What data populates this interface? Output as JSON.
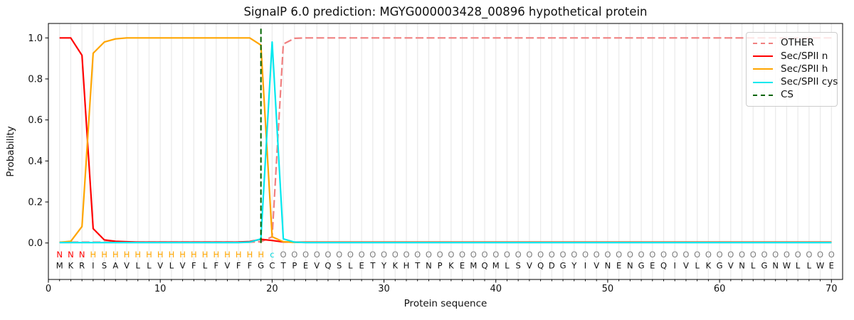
{
  "title": "SignalP 6.0 prediction: MGYG000003428_00896 hypothetical protein",
  "axes": {
    "x_label": "Protein sequence",
    "y_label": "Probability",
    "x_ticks": [
      0,
      10,
      20,
      30,
      40,
      50,
      60,
      70
    ],
    "y_ticks": [
      "0.0",
      "0.2",
      "0.4",
      "0.6",
      "0.8",
      "1.0"
    ],
    "x_range": [
      0,
      71
    ],
    "grid": "vertical gridlines at every residue position 1-70"
  },
  "legend": {
    "items": [
      {
        "label": "OTHER",
        "color": "#f08080",
        "style": "dashed"
      },
      {
        "label": "Sec/SPII n",
        "color": "#ff0000",
        "style": "solid"
      },
      {
        "label": "Sec/SPII h",
        "color": "#ffa500",
        "style": "solid"
      },
      {
        "label": "Sec/SPII cys",
        "color": "#00e8ee",
        "style": "solid"
      },
      {
        "label": "CS",
        "color": "#006400",
        "style": "dashed"
      }
    ]
  },
  "chart_data": {
    "type": "line",
    "x_min": 1,
    "x_max": 70,
    "ylim": [
      0,
      1
    ],
    "sequence": "MKRISAVLLVLVFLFVFFGCTPEVQSLETYKHTNPKEMQMLSVQDGYIVNENGEQIVLKGVNLGNWLLWE",
    "region_labels": "NNNHHHHHHHHHHHHHHHHcOOOOOOOOOOOOOOOOOOOOOOOOOOOOOOOOOOOOOOOOOOOOOOOOOO",
    "region_colors": {
      "N": "#ff0000",
      "H": "#ffa500",
      "c": "#00d8de",
      "O": "#7f7f7f"
    },
    "sequence_color": "#111111",
    "cs_line": {
      "name": "CS",
      "x": 19,
      "color": "#006400",
      "dash": true
    },
    "series": [
      {
        "name": "OTHER",
        "color": "#f08080",
        "dash": true,
        "values": [
          0.004,
          0.004,
          0.004,
          0.004,
          0.004,
          0.004,
          0.004,
          0.004,
          0.004,
          0.004,
          0.004,
          0.004,
          0.004,
          0.004,
          0.004,
          0.004,
          0.004,
          0.004,
          0.006,
          0.03,
          0.97,
          0.998,
          1.0,
          1.0,
          1.0,
          1.0,
          1.0,
          1.0,
          1.0,
          1.0,
          1.0,
          1.0,
          1.0,
          1.0,
          1.0,
          1.0,
          1.0,
          1.0,
          1.0,
          1.0,
          1.0,
          1.0,
          1.0,
          1.0,
          1.0,
          1.0,
          1.0,
          1.0,
          1.0,
          1.0,
          1.0,
          1.0,
          1.0,
          1.0,
          1.0,
          1.0,
          1.0,
          1.0,
          1.0,
          1.0,
          1.0,
          1.0,
          1.0,
          1.0,
          1.0,
          1.0,
          1.0,
          1.0,
          1.0,
          1.0
        ]
      },
      {
        "name": "Sec/SPII n",
        "color": "#ff0000",
        "dash": false,
        "values": [
          1.0,
          1.0,
          0.915,
          0.07,
          0.015,
          0.008,
          0.006,
          0.004,
          0.004,
          0.004,
          0.004,
          0.004,
          0.004,
          0.004,
          0.004,
          0.004,
          0.005,
          0.007,
          0.018,
          0.012,
          0.005,
          0.004,
          0.004,
          0.004,
          0.004,
          0.004,
          0.004,
          0.004,
          0.004,
          0.004,
          0.004,
          0.004,
          0.004,
          0.004,
          0.004,
          0.004,
          0.004,
          0.004,
          0.004,
          0.004,
          0.004,
          0.004,
          0.004,
          0.004,
          0.004,
          0.004,
          0.004,
          0.004,
          0.004,
          0.004,
          0.004,
          0.004,
          0.004,
          0.004,
          0.004,
          0.004,
          0.004,
          0.004,
          0.004,
          0.004,
          0.004,
          0.004,
          0.004,
          0.004,
          0.004,
          0.004,
          0.004,
          0.004,
          0.004,
          0.004
        ]
      },
      {
        "name": "Sec/SPII h",
        "color": "#ffa500",
        "dash": false,
        "values": [
          0.003,
          0.008,
          0.08,
          0.925,
          0.98,
          0.995,
          1.0,
          1.0,
          1.0,
          1.0,
          1.0,
          1.0,
          1.0,
          1.0,
          1.0,
          1.0,
          1.0,
          1.0,
          0.965,
          0.03,
          0.006,
          0.003,
          0.003,
          0.003,
          0.003,
          0.003,
          0.003,
          0.003,
          0.003,
          0.003,
          0.003,
          0.003,
          0.003,
          0.003,
          0.003,
          0.003,
          0.003,
          0.003,
          0.003,
          0.003,
          0.003,
          0.003,
          0.003,
          0.003,
          0.003,
          0.003,
          0.003,
          0.003,
          0.003,
          0.003,
          0.003,
          0.003,
          0.003,
          0.003,
          0.003,
          0.003,
          0.003,
          0.003,
          0.003,
          0.003,
          0.003,
          0.003,
          0.003,
          0.003,
          0.003,
          0.003,
          0.003,
          0.003,
          0.003,
          0.003
        ]
      },
      {
        "name": "Sec/SPII cys",
        "color": "#00e8ee",
        "dash": false,
        "values": [
          0.002,
          0.002,
          0.002,
          0.002,
          0.002,
          0.002,
          0.002,
          0.002,
          0.002,
          0.002,
          0.002,
          0.002,
          0.002,
          0.002,
          0.002,
          0.002,
          0.002,
          0.004,
          0.02,
          0.98,
          0.02,
          0.004,
          0.002,
          0.002,
          0.002,
          0.002,
          0.002,
          0.002,
          0.002,
          0.002,
          0.002,
          0.002,
          0.002,
          0.002,
          0.002,
          0.002,
          0.002,
          0.002,
          0.002,
          0.002,
          0.002,
          0.002,
          0.002,
          0.002,
          0.002,
          0.002,
          0.002,
          0.002,
          0.002,
          0.002,
          0.002,
          0.002,
          0.002,
          0.002,
          0.002,
          0.002,
          0.002,
          0.002,
          0.002,
          0.002,
          0.002,
          0.002,
          0.002,
          0.002,
          0.002,
          0.002,
          0.002,
          0.002,
          0.002,
          0.002
        ]
      }
    ]
  },
  "style": {
    "gridline_color": "#ebebeb",
    "spine_color": "#000000",
    "background": "#ffffff"
  }
}
